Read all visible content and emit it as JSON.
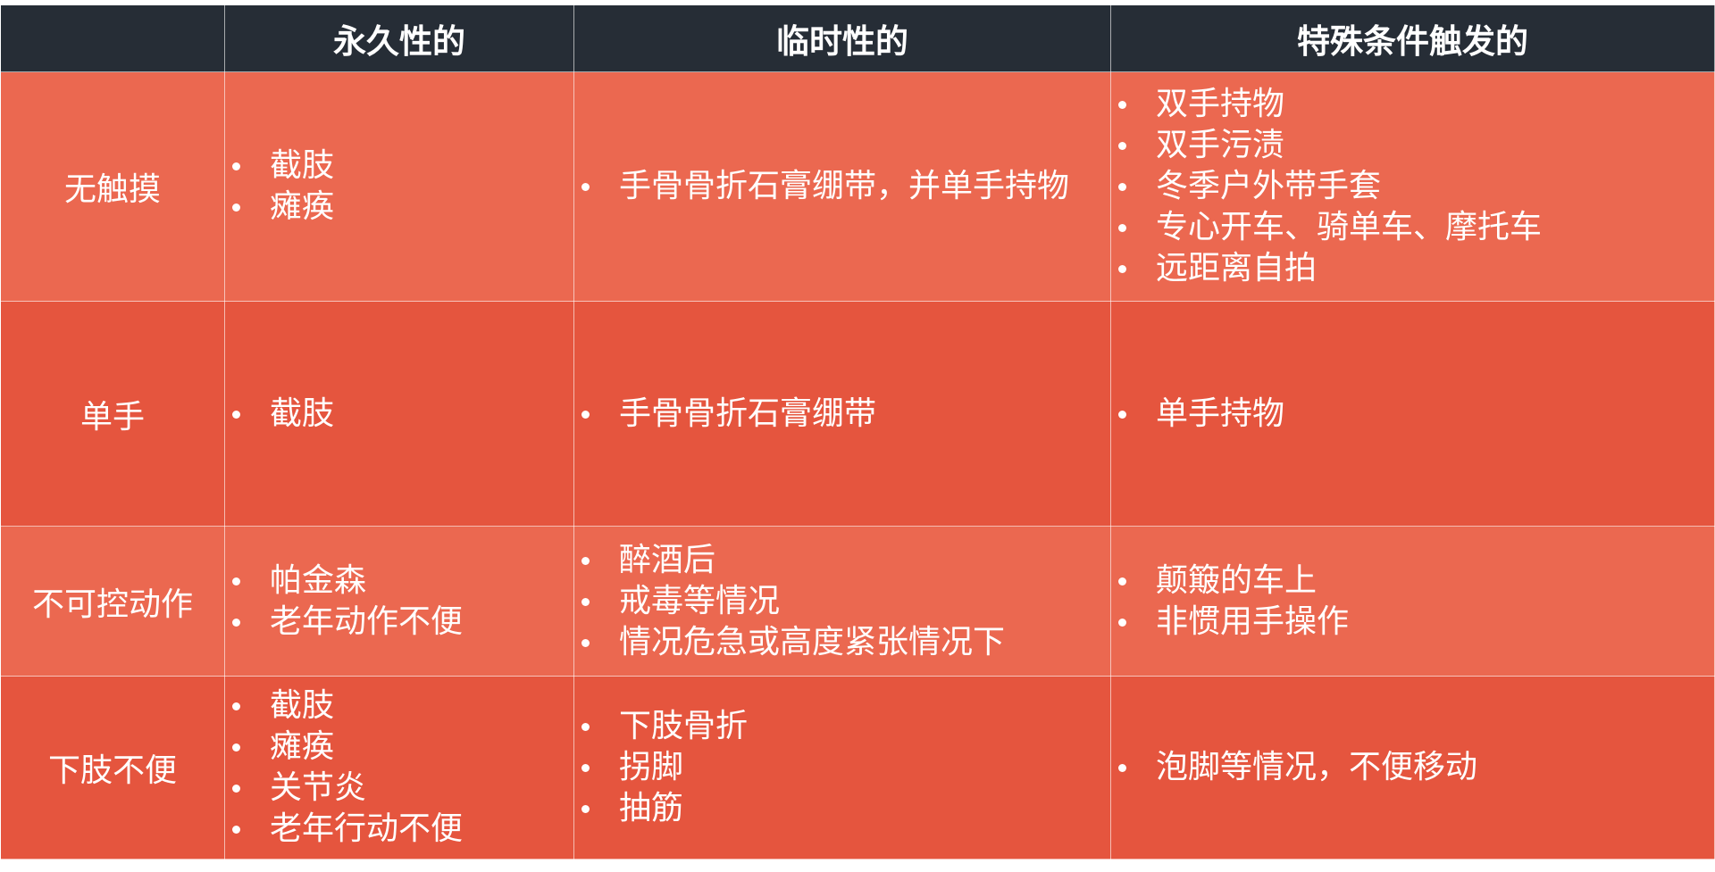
{
  "colors": {
    "header": "#262d36",
    "row_light": "#eb6850",
    "row_dark": "#e5553e",
    "text": "#ffffff"
  },
  "headers": [
    "",
    "永久性的",
    "临时性的",
    "特殊条件触发的"
  ],
  "rows": [
    {
      "label": "无触摸",
      "permanent": [
        "截肢",
        "瘫痪"
      ],
      "temporary": [
        "手骨骨折石膏绷带，并单手持物"
      ],
      "situational": [
        "双手持物",
        "双手污渍",
        "冬季户外带手套",
        "专心开车、骑单车、摩托车",
        "远距离自拍"
      ]
    },
    {
      "label": "单手",
      "permanent": [
        "截肢"
      ],
      "temporary": [
        "手骨骨折石膏绷带"
      ],
      "situational": [
        "单手持物"
      ]
    },
    {
      "label": "不可控动作",
      "permanent": [
        "帕金森",
        "老年动作不便"
      ],
      "temporary": [
        "醉酒后",
        "戒毒等情况",
        "情况危急或高度紧张情况下"
      ],
      "situational": [
        "颠簸的车上",
        "非惯用手操作"
      ]
    },
    {
      "label": "下肢不便",
      "permanent": [
        "截肢",
        "瘫痪",
        "关节炎",
        "老年行动不便"
      ],
      "temporary": [
        "下肢骨折",
        "拐脚",
        "抽筋"
      ],
      "situational": [
        "泡脚等情况，不便移动"
      ]
    }
  ]
}
